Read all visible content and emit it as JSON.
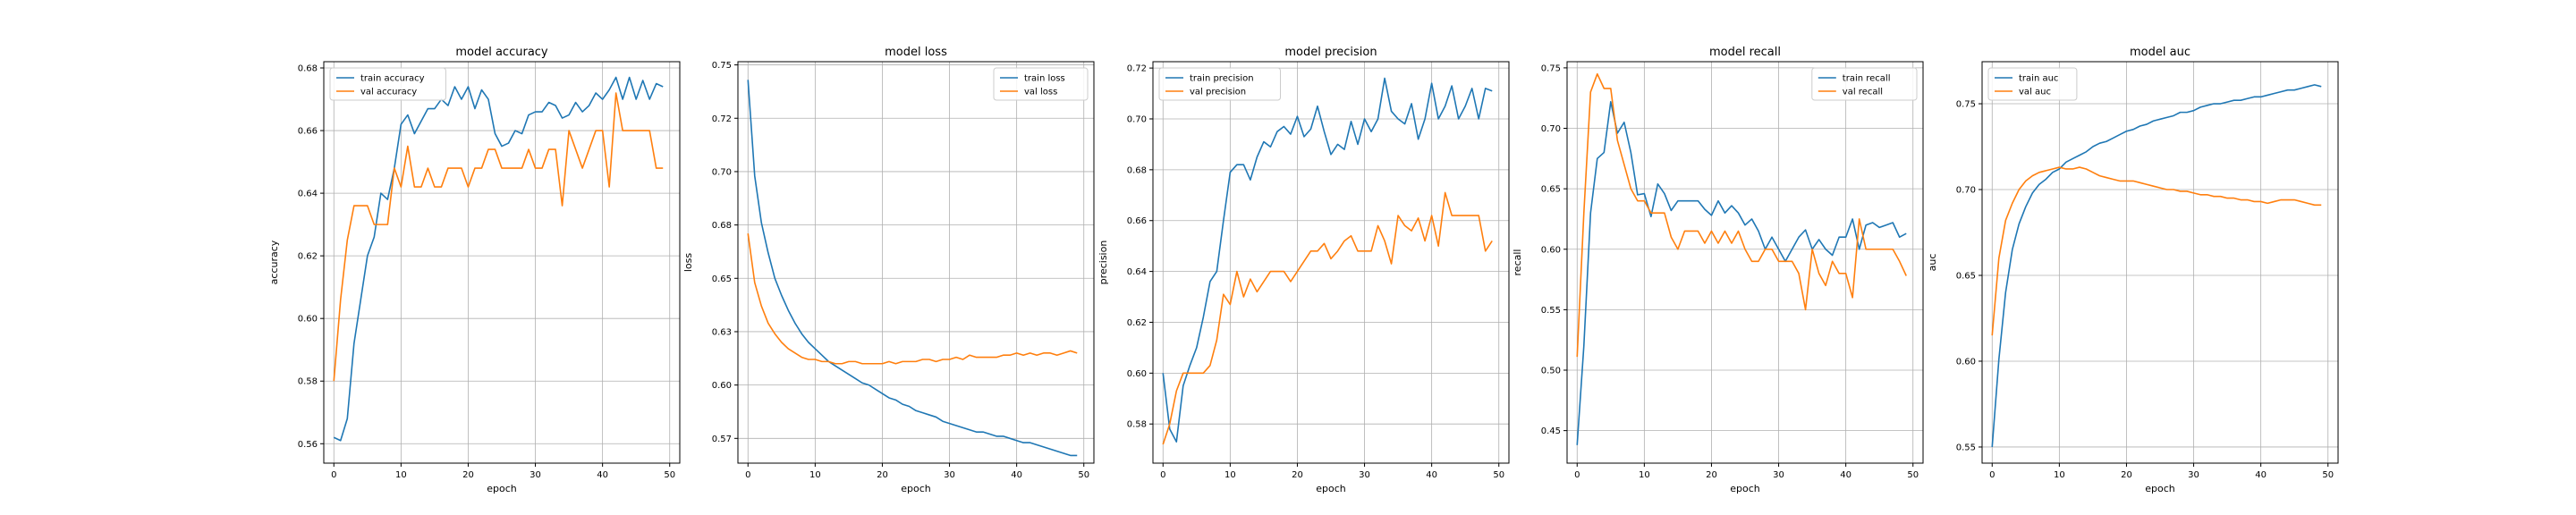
{
  "colors": {
    "train": "#1f77b4",
    "val": "#ff7f0e",
    "grid": "#b0b0b0"
  },
  "chart_data": [
    {
      "type": "line",
      "title": "model accuracy",
      "xlabel": "epoch",
      "ylabel": "accuracy",
      "legend": "upper left",
      "grid": true,
      "xlim": [
        -1.5,
        51.5
      ],
      "ylim": [
        0.5538,
        0.682
      ],
      "xticks": [
        0,
        10,
        20,
        30,
        40,
        50
      ],
      "yticks": [
        0.56,
        0.58,
        0.6,
        0.62,
        0.64,
        0.66,
        0.68
      ],
      "x": [
        0,
        1,
        2,
        3,
        4,
        5,
        6,
        7,
        8,
        9,
        10,
        11,
        12,
        13,
        14,
        15,
        16,
        17,
        18,
        19,
        20,
        21,
        22,
        23,
        24,
        25,
        26,
        27,
        28,
        29,
        30,
        31,
        32,
        33,
        34,
        35,
        36,
        37,
        38,
        39,
        40,
        41,
        42,
        43,
        44,
        45,
        46,
        47,
        48,
        49
      ],
      "series": [
        {
          "name": "train accuracy",
          "values": [
            0.562,
            0.561,
            0.568,
            0.592,
            0.606,
            0.62,
            0.626,
            0.64,
            0.638,
            0.648,
            0.662,
            0.665,
            0.659,
            0.663,
            0.667,
            0.667,
            0.67,
            0.668,
            0.674,
            0.67,
            0.674,
            0.667,
            0.673,
            0.67,
            0.659,
            0.655,
            0.656,
            0.66,
            0.659,
            0.665,
            0.666,
            0.666,
            0.669,
            0.668,
            0.664,
            0.665,
            0.669,
            0.666,
            0.668,
            0.672,
            0.67,
            0.673,
            0.677,
            0.67,
            0.677,
            0.67,
            0.676,
            0.67,
            0.675,
            0.674
          ]
        },
        {
          "name": "val accuracy",
          "values": [
            0.58,
            0.606,
            0.625,
            0.636,
            0.636,
            0.636,
            0.63,
            0.63,
            0.63,
            0.648,
            0.642,
            0.655,
            0.642,
            0.642,
            0.648,
            0.642,
            0.642,
            0.648,
            0.648,
            0.648,
            0.642,
            0.648,
            0.648,
            0.654,
            0.654,
            0.648,
            0.648,
            0.648,
            0.648,
            0.654,
            0.648,
            0.648,
            0.654,
            0.654,
            0.636,
            0.66,
            0.654,
            0.648,
            0.654,
            0.66,
            0.66,
            0.642,
            0.672,
            0.66,
            0.66,
            0.66,
            0.66,
            0.66,
            0.648,
            0.648
          ]
        }
      ]
    },
    {
      "type": "line",
      "title": "model loss",
      "xlabel": "epoch",
      "ylabel": "loss",
      "legend": "upper right",
      "grid": true,
      "xlim": [
        -1.5,
        51.5
      ],
      "ylim": [
        0.5634,
        0.7515
      ],
      "xticks": [
        0,
        10,
        20,
        30,
        40,
        50
      ],
      "yticks": [
        0.575,
        0.6,
        0.625,
        0.65,
        0.675,
        0.7,
        0.725,
        0.75
      ],
      "x": [
        0,
        1,
        2,
        3,
        4,
        5,
        6,
        7,
        8,
        9,
        10,
        11,
        12,
        13,
        14,
        15,
        16,
        17,
        18,
        19,
        20,
        21,
        22,
        23,
        24,
        25,
        26,
        27,
        28,
        29,
        30,
        31,
        32,
        33,
        34,
        35,
        36,
        37,
        38,
        39,
        40,
        41,
        42,
        43,
        44,
        45,
        46,
        47,
        48,
        49
      ],
      "series": [
        {
          "name": "train loss",
          "values": [
            0.743,
            0.698,
            0.676,
            0.662,
            0.65,
            0.642,
            0.635,
            0.629,
            0.624,
            0.62,
            0.617,
            0.614,
            0.611,
            0.609,
            0.607,
            0.605,
            0.603,
            0.601,
            0.6,
            0.598,
            0.596,
            0.594,
            0.593,
            0.591,
            0.59,
            0.588,
            0.587,
            0.586,
            0.585,
            0.583,
            0.582,
            0.581,
            0.58,
            0.579,
            0.578,
            0.578,
            0.577,
            0.576,
            0.576,
            0.575,
            0.574,
            0.573,
            0.573,
            0.572,
            0.571,
            0.57,
            0.569,
            0.568,
            0.567,
            0.567
          ]
        },
        {
          "name": "val loss",
          "values": [
            0.671,
            0.648,
            0.637,
            0.629,
            0.624,
            0.62,
            0.617,
            0.615,
            0.613,
            0.612,
            0.612,
            0.611,
            0.611,
            0.61,
            0.61,
            0.611,
            0.611,
            0.61,
            0.61,
            0.61,
            0.61,
            0.611,
            0.61,
            0.611,
            0.611,
            0.611,
            0.612,
            0.612,
            0.611,
            0.612,
            0.612,
            0.613,
            0.612,
            0.614,
            0.613,
            0.613,
            0.613,
            0.613,
            0.614,
            0.614,
            0.615,
            0.614,
            0.615,
            0.614,
            0.615,
            0.615,
            0.614,
            0.615,
            0.616,
            0.615
          ]
        }
      ]
    },
    {
      "type": "line",
      "title": "model precision",
      "xlabel": "epoch",
      "ylabel": "precision",
      "legend": "upper left",
      "grid": true,
      "xlim": [
        -1.5,
        51.5
      ],
      "ylim": [
        0.5646,
        0.7225
      ],
      "xticks": [
        0,
        10,
        20,
        30,
        40,
        50
      ],
      "yticks": [
        0.58,
        0.6,
        0.62,
        0.64,
        0.66,
        0.68,
        0.7,
        0.72
      ],
      "x": [
        0,
        1,
        2,
        3,
        4,
        5,
        6,
        7,
        8,
        9,
        10,
        11,
        12,
        13,
        14,
        15,
        16,
        17,
        18,
        19,
        20,
        21,
        22,
        23,
        24,
        25,
        26,
        27,
        28,
        29,
        30,
        31,
        32,
        33,
        34,
        35,
        36,
        37,
        38,
        39,
        40,
        41,
        42,
        43,
        44,
        45,
        46,
        47,
        48,
        49
      ],
      "series": [
        {
          "name": "train precision",
          "values": [
            0.6,
            0.578,
            0.573,
            0.595,
            0.603,
            0.61,
            0.622,
            0.636,
            0.64,
            0.66,
            0.679,
            0.682,
            0.682,
            0.676,
            0.685,
            0.691,
            0.689,
            0.695,
            0.697,
            0.694,
            0.701,
            0.693,
            0.696,
            0.705,
            0.695,
            0.686,
            0.69,
            0.688,
            0.699,
            0.69,
            0.7,
            0.695,
            0.7,
            0.716,
            0.703,
            0.7,
            0.698,
            0.706,
            0.692,
            0.7,
            0.714,
            0.7,
            0.705,
            0.713,
            0.7,
            0.705,
            0.712,
            0.7,
            0.712,
            0.711
          ]
        },
        {
          "name": "val precision",
          "values": [
            0.572,
            0.58,
            0.593,
            0.6,
            0.6,
            0.6,
            0.6,
            0.603,
            0.613,
            0.631,
            0.627,
            0.64,
            0.63,
            0.637,
            0.632,
            0.636,
            0.64,
            0.64,
            0.64,
            0.636,
            0.64,
            0.644,
            0.648,
            0.648,
            0.651,
            0.645,
            0.648,
            0.652,
            0.654,
            0.648,
            0.648,
            0.648,
            0.658,
            0.652,
            0.643,
            0.662,
            0.658,
            0.656,
            0.661,
            0.652,
            0.662,
            0.65,
            0.671,
            0.662,
            0.662,
            0.662,
            0.662,
            0.662,
            0.648,
            0.652
          ]
        }
      ]
    },
    {
      "type": "line",
      "title": "model recall",
      "xlabel": "epoch",
      "ylabel": "recall",
      "legend": "upper right",
      "grid": true,
      "xlim": [
        -1.5,
        51.5
      ],
      "ylim": [
        0.4231,
        0.7551
      ],
      "xticks": [
        0,
        10,
        20,
        30,
        40,
        50
      ],
      "yticks": [
        0.45,
        0.5,
        0.55,
        0.6,
        0.65,
        0.7,
        0.75
      ],
      "x": [
        0,
        1,
        2,
        3,
        4,
        5,
        6,
        7,
        8,
        9,
        10,
        11,
        12,
        13,
        14,
        15,
        16,
        17,
        18,
        19,
        20,
        21,
        22,
        23,
        24,
        25,
        26,
        27,
        28,
        29,
        30,
        31,
        32,
        33,
        34,
        35,
        36,
        37,
        38,
        39,
        40,
        41,
        42,
        43,
        44,
        45,
        46,
        47,
        48,
        49
      ],
      "series": [
        {
          "name": "train recall",
          "values": [
            0.438,
            0.52,
            0.63,
            0.675,
            0.68,
            0.722,
            0.696,
            0.705,
            0.68,
            0.645,
            0.646,
            0.627,
            0.654,
            0.646,
            0.632,
            0.64,
            0.64,
            0.64,
            0.64,
            0.633,
            0.628,
            0.64,
            0.63,
            0.636,
            0.63,
            0.62,
            0.625,
            0.615,
            0.6,
            0.61,
            0.6,
            0.59,
            0.6,
            0.61,
            0.616,
            0.6,
            0.608,
            0.6,
            0.595,
            0.61,
            0.61,
            0.625,
            0.6,
            0.62,
            0.622,
            0.618,
            0.62,
            0.622,
            0.61,
            0.613
          ]
        },
        {
          "name": "val recall",
          "values": [
            0.511,
            0.63,
            0.73,
            0.745,
            0.733,
            0.733,
            0.69,
            0.67,
            0.65,
            0.64,
            0.64,
            0.63,
            0.63,
            0.63,
            0.61,
            0.6,
            0.615,
            0.615,
            0.615,
            0.605,
            0.615,
            0.605,
            0.615,
            0.605,
            0.615,
            0.6,
            0.59,
            0.59,
            0.6,
            0.6,
            0.59,
            0.59,
            0.59,
            0.58,
            0.55,
            0.6,
            0.58,
            0.57,
            0.59,
            0.58,
            0.58,
            0.56,
            0.625,
            0.6,
            0.6,
            0.6,
            0.6,
            0.6,
            0.59,
            0.578
          ]
        }
      ]
    },
    {
      "type": "line",
      "title": "model auc",
      "xlabel": "epoch",
      "ylabel": "auc",
      "legend": "upper left",
      "grid": true,
      "xlim": [
        -1.5,
        51.5
      ],
      "ylim": [
        0.5406,
        0.7745
      ],
      "xticks": [
        0,
        10,
        20,
        30,
        40,
        50
      ],
      "yticks": [
        0.55,
        0.6,
        0.65,
        0.7,
        0.75
      ],
      "x": [
        0,
        1,
        2,
        3,
        4,
        5,
        6,
        7,
        8,
        9,
        10,
        11,
        12,
        13,
        14,
        15,
        16,
        17,
        18,
        19,
        20,
        21,
        22,
        23,
        24,
        25,
        26,
        27,
        28,
        29,
        30,
        31,
        32,
        33,
        34,
        35,
        36,
        37,
        38,
        39,
        40,
        41,
        42,
        43,
        44,
        45,
        46,
        47,
        48,
        49
      ],
      "series": [
        {
          "name": "train auc",
          "values": [
            0.55,
            0.601,
            0.64,
            0.665,
            0.68,
            0.69,
            0.698,
            0.703,
            0.706,
            0.71,
            0.712,
            0.716,
            0.718,
            0.72,
            0.722,
            0.725,
            0.727,
            0.728,
            0.73,
            0.732,
            0.734,
            0.735,
            0.737,
            0.738,
            0.74,
            0.741,
            0.742,
            0.743,
            0.745,
            0.745,
            0.746,
            0.748,
            0.749,
            0.75,
            0.75,
            0.751,
            0.752,
            0.752,
            0.753,
            0.754,
            0.754,
            0.755,
            0.756,
            0.757,
            0.758,
            0.758,
            0.759,
            0.76,
            0.761,
            0.76
          ]
        },
        {
          "name": "val auc",
          "values": [
            0.615,
            0.66,
            0.682,
            0.692,
            0.7,
            0.705,
            0.708,
            0.71,
            0.711,
            0.712,
            0.713,
            0.712,
            0.712,
            0.713,
            0.712,
            0.71,
            0.708,
            0.707,
            0.706,
            0.705,
            0.705,
            0.705,
            0.704,
            0.703,
            0.702,
            0.701,
            0.7,
            0.7,
            0.699,
            0.699,
            0.698,
            0.697,
            0.697,
            0.696,
            0.696,
            0.695,
            0.695,
            0.694,
            0.694,
            0.693,
            0.693,
            0.692,
            0.693,
            0.694,
            0.694,
            0.694,
            0.693,
            0.692,
            0.691,
            0.691
          ]
        }
      ]
    }
  ]
}
